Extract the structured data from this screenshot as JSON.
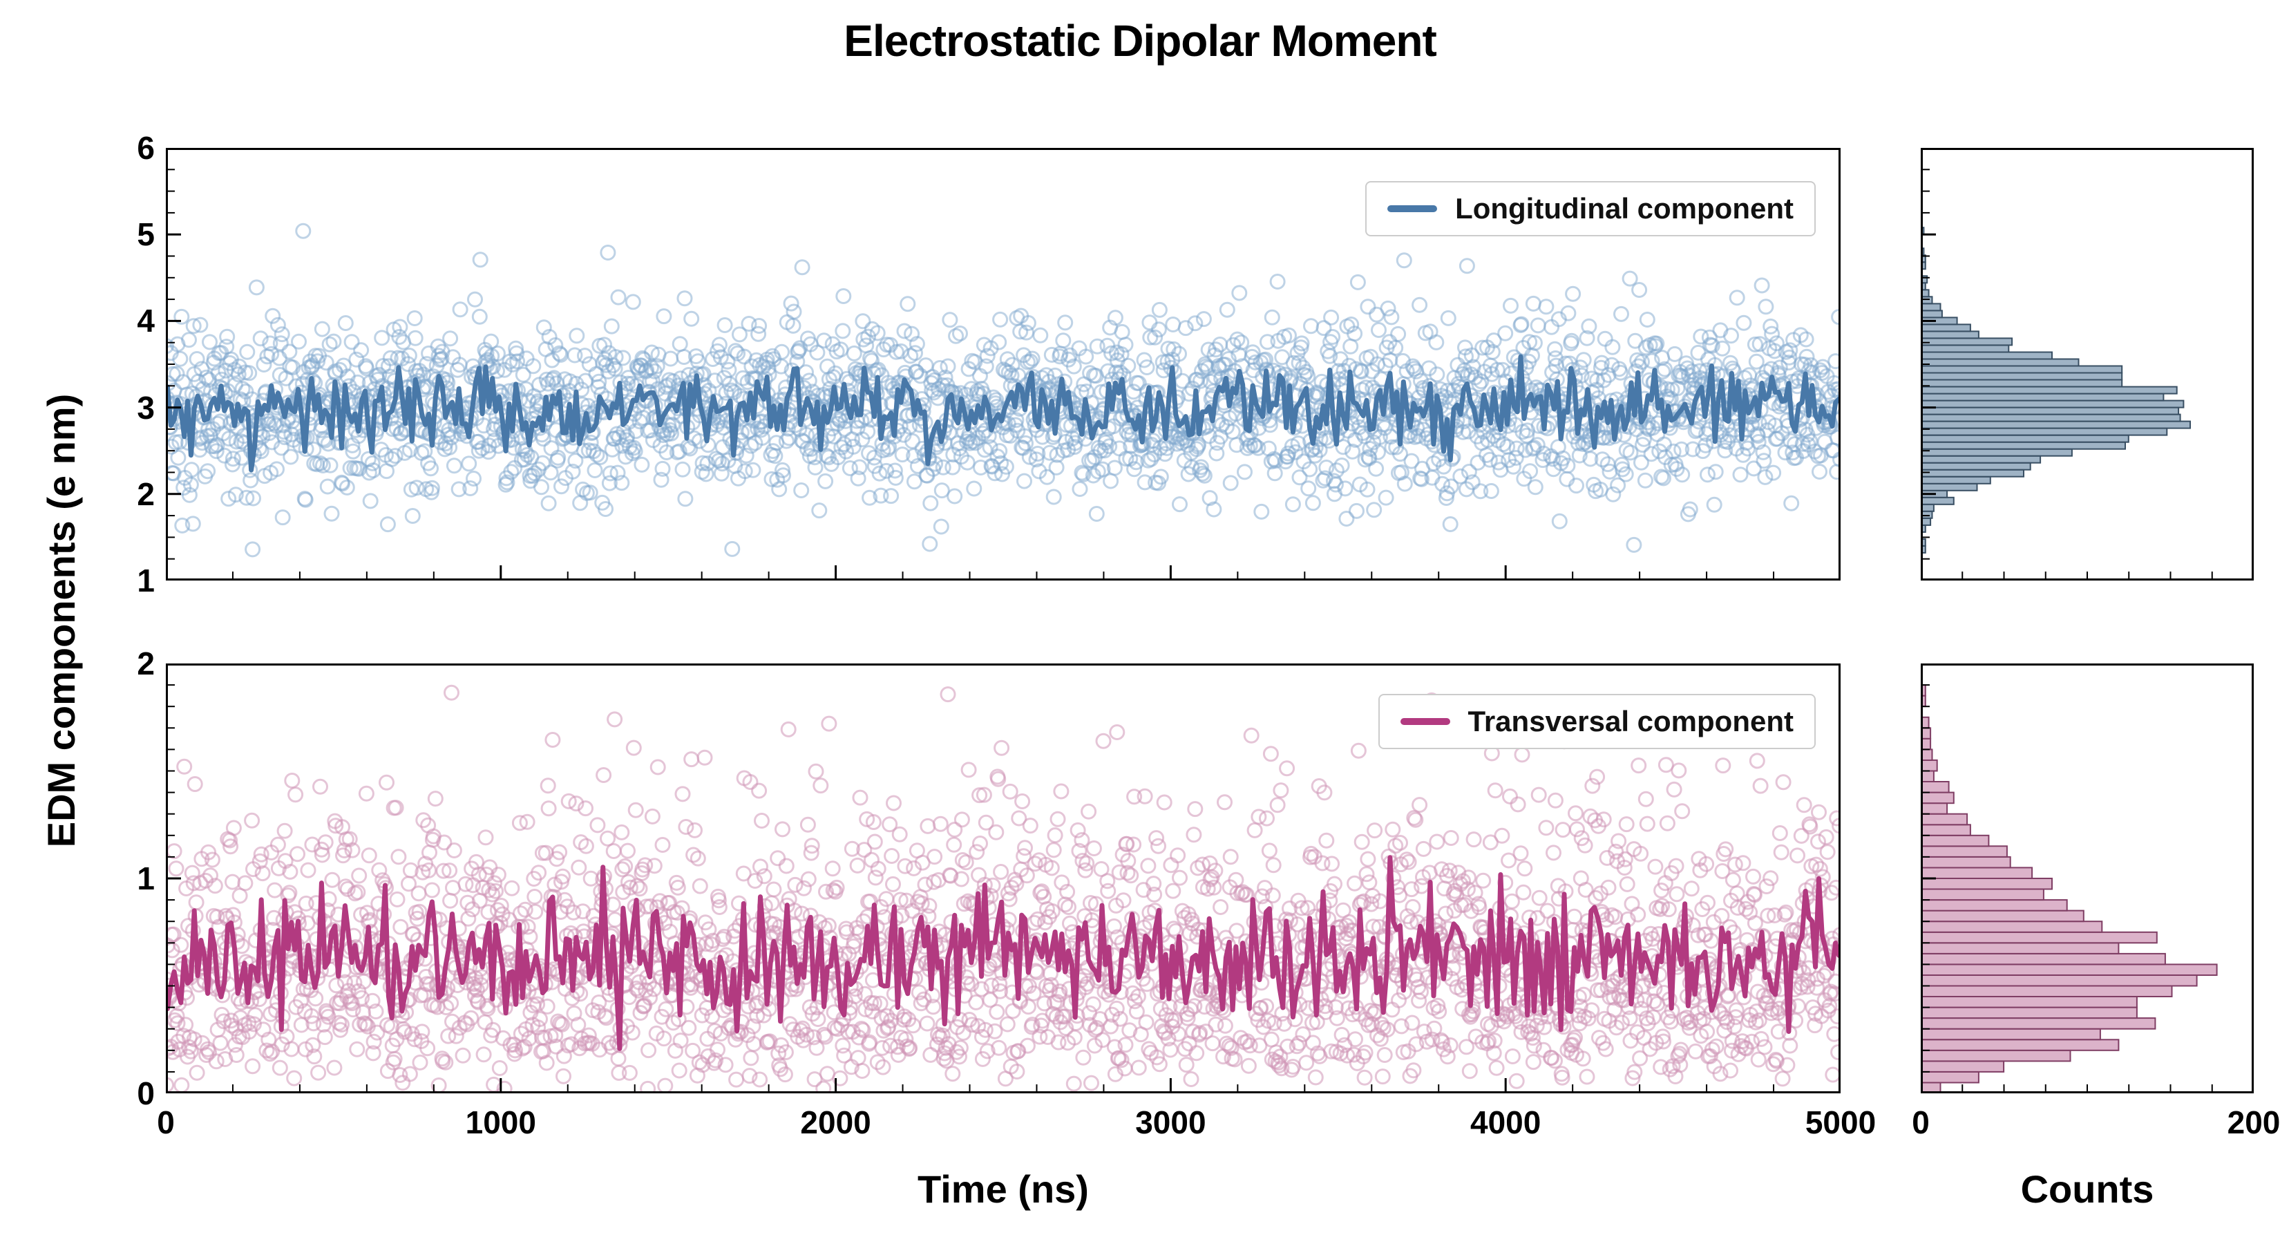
{
  "title": "Electrostatic Dipolar Moment",
  "ylabel": "EDM components (e nm)",
  "xlabel": "Time (ns)",
  "counts_label": "Counts",
  "background": "#ffffff",
  "grid": false,
  "legend_position": "upper right",
  "chart_data": [
    {
      "id": "longitudinal",
      "type": "scatter",
      "panel": "top",
      "legend": "Longitudinal component",
      "seed": 20240601,
      "x": {
        "range": [
          0,
          5000
        ],
        "ticks": [
          0,
          1000,
          2000,
          3000,
          4000,
          5000
        ],
        "minor_step": 200,
        "show_tick_labels": false
      },
      "y": {
        "range": [
          1,
          6
        ],
        "ticks": [
          1,
          2,
          3,
          4,
          5,
          6
        ],
        "minor_step": 0.25
      },
      "scatter": {
        "n": 2500,
        "distribution": "gaussian",
        "mean": 3.0,
        "std": 0.5,
        "marker": "open-circle",
        "radius": 10,
        "color": "#7fa8cd",
        "opacity": 0.5,
        "outliers": [
          [
            410,
            5.04
          ],
          [
            1320,
            4.79
          ],
          [
            1900,
            4.62
          ]
        ]
      },
      "line": {
        "color": "#4878a8",
        "width": 7,
        "smooth_window": 5
      },
      "histogram": {
        "range": [
          0,
          200
        ],
        "ticks": [
          0,
          200
        ],
        "minor_step": 25,
        "bin_size": 0.08,
        "fill": "#87a0b6",
        "edge": "#394f63",
        "fill_opacity": 0.8,
        "approx_peak_counts": 160,
        "show_tick_labels": false
      }
    },
    {
      "id": "transversal",
      "type": "scatter",
      "panel": "bottom",
      "legend": "Transversal component",
      "seed": 987654,
      "x": {
        "range": [
          0,
          5000
        ],
        "ticks": [
          0,
          1000,
          2000,
          3000,
          4000,
          5000
        ],
        "minor_step": 200,
        "show_tick_labels": true
      },
      "y": {
        "range": [
          0,
          2
        ],
        "ticks": [
          0,
          1,
          2
        ],
        "minor_step": 0.1
      },
      "scatter": {
        "n": 2500,
        "distribution": "rayleigh",
        "sigma": 0.5,
        "marker": "open-circle",
        "radius": 10,
        "color": "#cf96b6",
        "opacity": 0.55,
        "outliers": [
          [
            1340,
            1.74
          ],
          [
            1980,
            1.72
          ],
          [
            2840,
            1.68
          ]
        ]
      },
      "line": {
        "color": "#b23a80",
        "width": 7,
        "smooth_window": 5
      },
      "histogram": {
        "range": [
          0,
          200
        ],
        "ticks": [
          0,
          200
        ],
        "minor_step": 25,
        "bin_size": 0.05,
        "fill": "#d6a6c1",
        "edge": "#7f3e64",
        "fill_opacity": 0.85,
        "approx_peak_counts": 150,
        "show_tick_labels": true
      }
    }
  ]
}
